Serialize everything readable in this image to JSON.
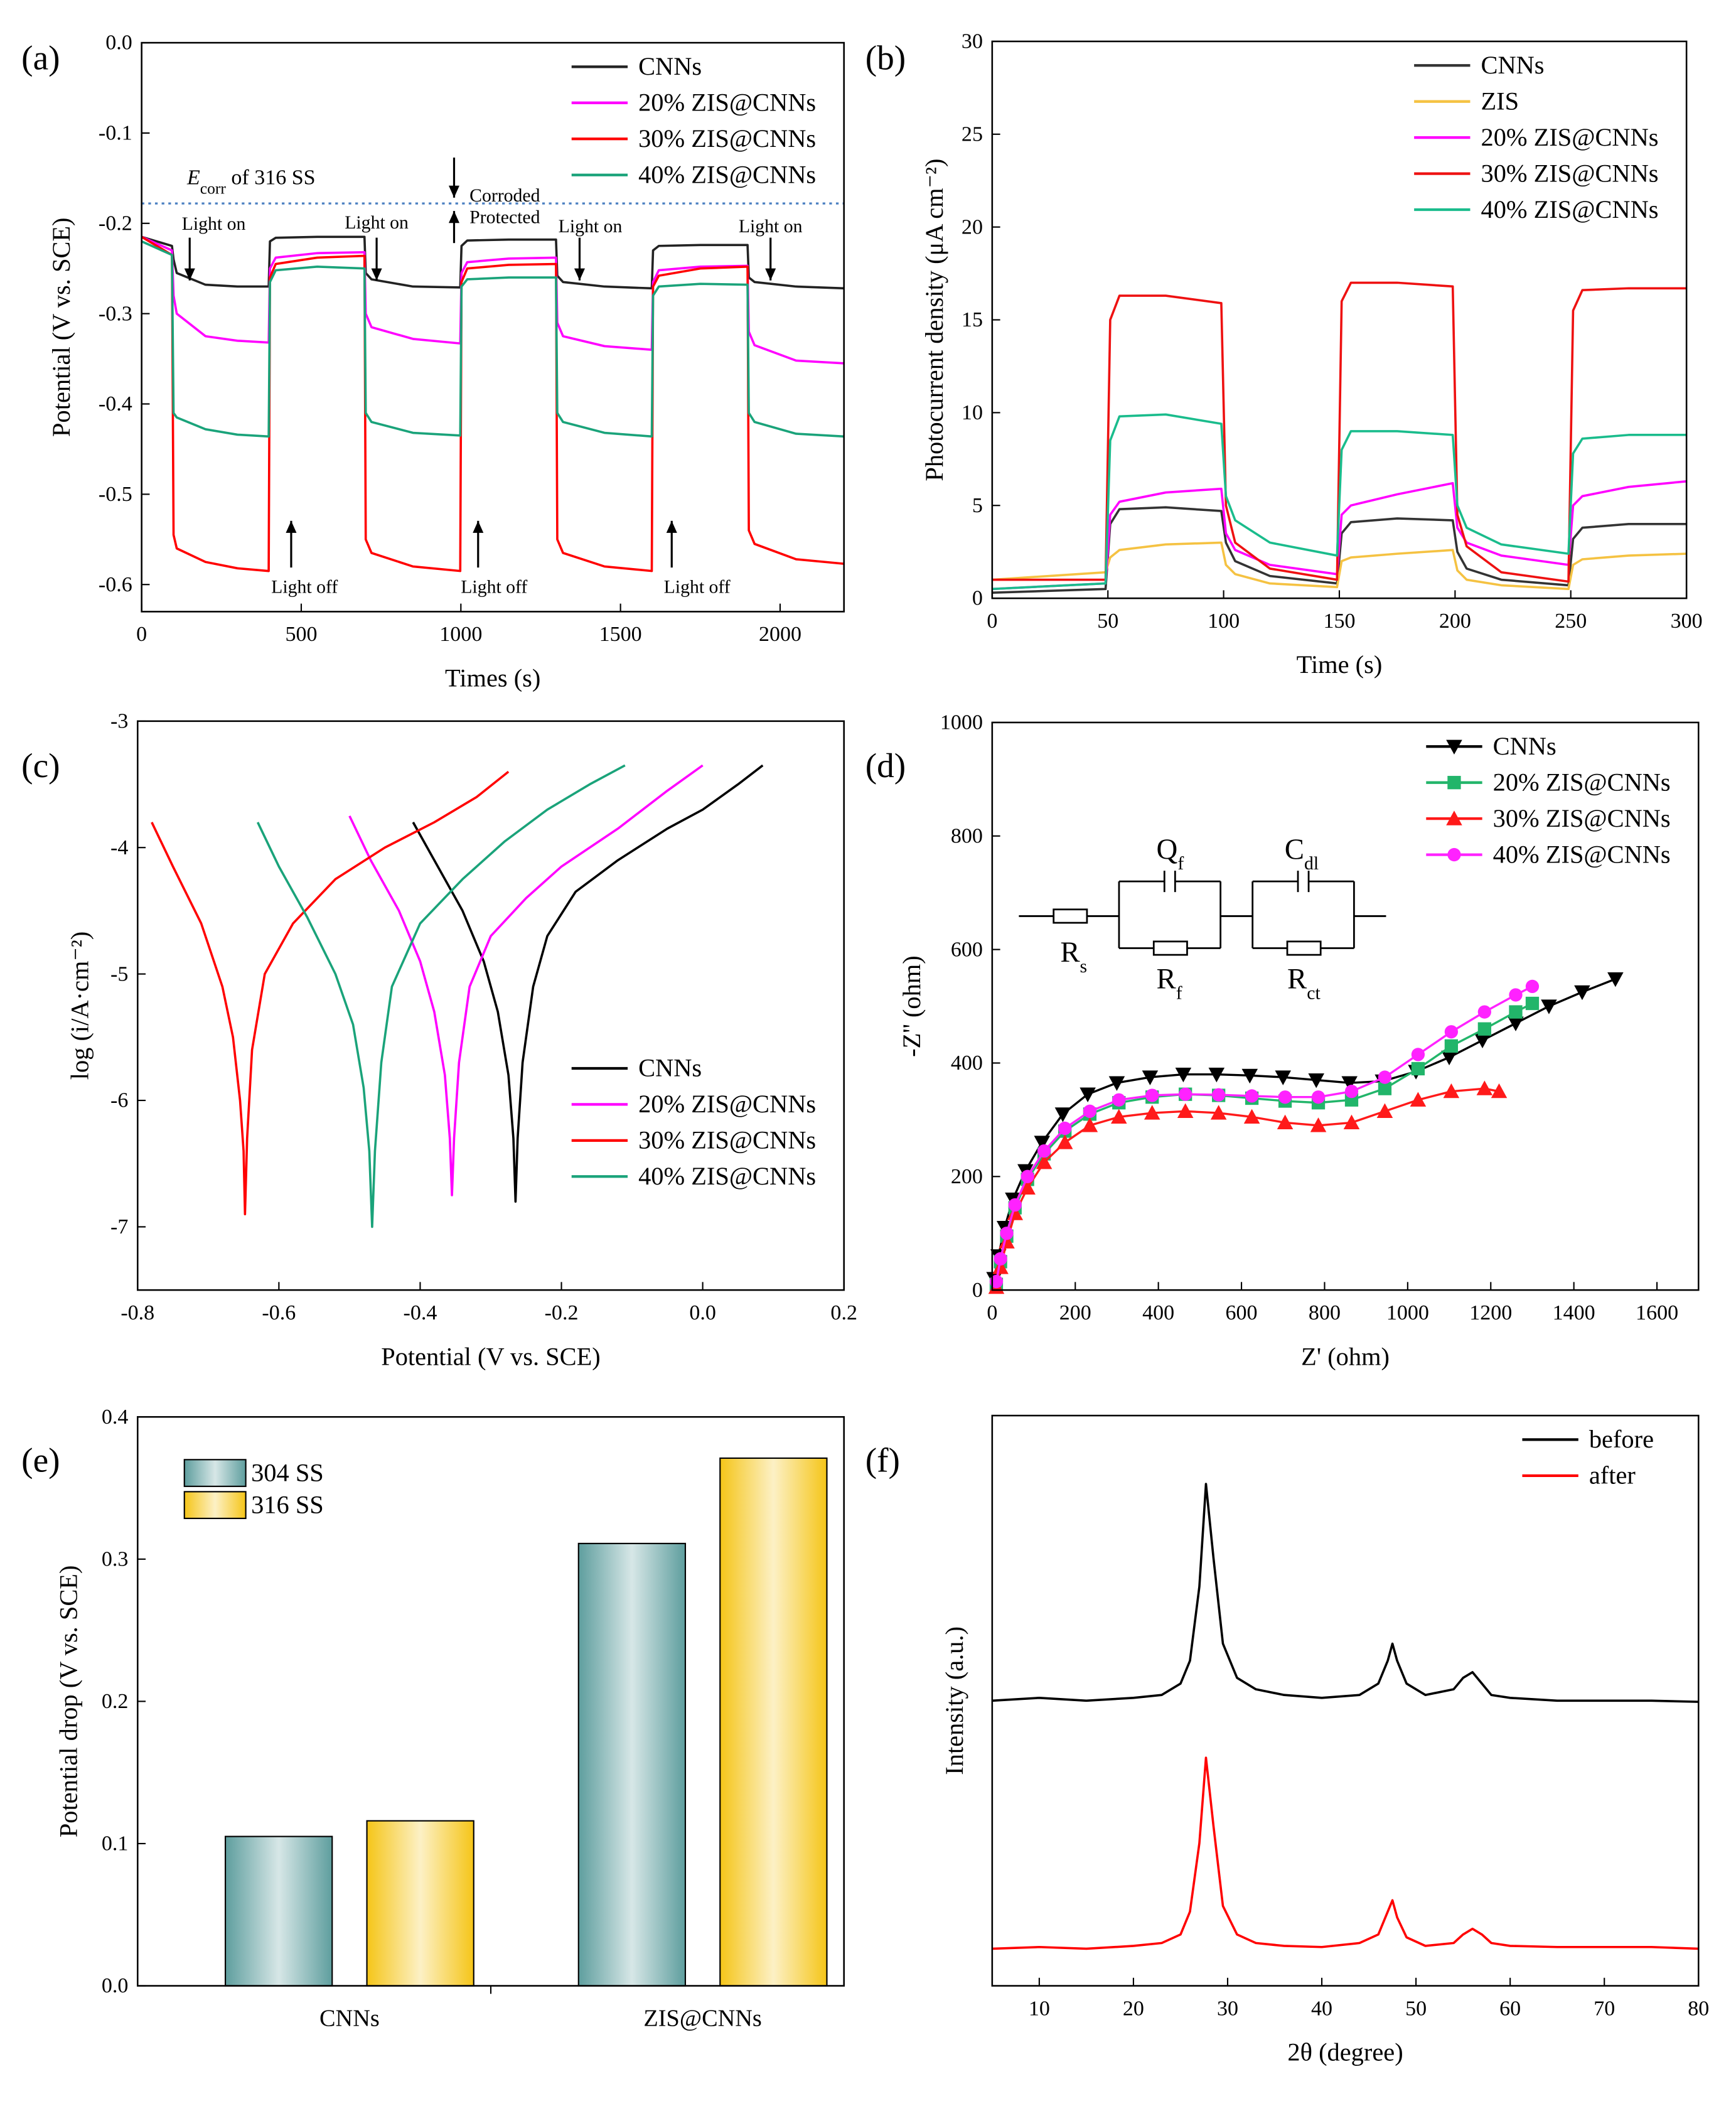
{
  "chart_data": [
    {
      "type": "line",
      "label": "(a)",
      "xlabel": "Times (s)",
      "ylabel": "Potential (V vs. SCE)",
      "xlim": [
        0,
        2200
      ],
      "xticks": [
        0,
        500,
        1000,
        1500,
        2000
      ],
      "ylim": [
        -0.63,
        0
      ],
      "yticks": [
        {
          "value": 0,
          "label": "0.0"
        },
        -0.1,
        -0.2,
        -0.3,
        -0.4,
        -0.5,
        -0.6
      ],
      "legend": "top-right",
      "ref_line": {
        "value": -0.178,
        "color": "#4a7fc1"
      },
      "ecorr_label": [
        "E",
        "corr",
        " of 316 SS"
      ],
      "annotations": [
        "Light on",
        "Light on",
        "Light on",
        "Light on",
        "Light off",
        "Light off",
        "Light off",
        "Corroded",
        "Protected"
      ],
      "x": [
        0,
        95,
        100,
        110,
        200,
        300,
        398,
        402,
        420,
        550,
        698,
        702,
        720,
        850,
        998,
        1002,
        1020,
        1150,
        1298,
        1302,
        1320,
        1450,
        1598,
        1602,
        1620,
        1750,
        1898,
        1902,
        1920,
        2050,
        2200
      ],
      "series": [
        {
          "name": "CNNs",
          "color": "#222222",
          "values": [
            -0.215,
            -0.225,
            -0.24,
            -0.255,
            -0.268,
            -0.27,
            -0.27,
            -0.22,
            -0.216,
            -0.215,
            -0.215,
            -0.255,
            -0.262,
            -0.27,
            -0.271,
            -0.225,
            -0.219,
            -0.218,
            -0.218,
            -0.258,
            -0.265,
            -0.27,
            -0.272,
            -0.23,
            -0.225,
            -0.224,
            -0.224,
            -0.26,
            -0.265,
            -0.27,
            -0.272
          ]
        },
        {
          "name": "20% ZIS@CNNs",
          "color": "#ff00ff",
          "values": [
            -0.215,
            -0.23,
            -0.28,
            -0.3,
            -0.325,
            -0.33,
            -0.332,
            -0.25,
            -0.238,
            -0.233,
            -0.232,
            -0.3,
            -0.315,
            -0.328,
            -0.333,
            -0.255,
            -0.243,
            -0.239,
            -0.238,
            -0.31,
            -0.325,
            -0.336,
            -0.34,
            -0.265,
            -0.252,
            -0.248,
            -0.247,
            -0.32,
            -0.335,
            -0.352,
            -0.355
          ]
        },
        {
          "name": "30% ZIS@CNNs",
          "color": "#ff0000",
          "values": [
            -0.215,
            -0.235,
            -0.545,
            -0.56,
            -0.575,
            -0.582,
            -0.585,
            -0.26,
            -0.245,
            -0.238,
            -0.236,
            -0.55,
            -0.565,
            -0.58,
            -0.585,
            -0.265,
            -0.25,
            -0.246,
            -0.245,
            -0.55,
            -0.565,
            -0.58,
            -0.585,
            -0.27,
            -0.258,
            -0.25,
            -0.248,
            -0.54,
            -0.555,
            -0.572,
            -0.577
          ]
        },
        {
          "name": "40% ZIS@CNNs",
          "color": "#1aa37a",
          "values": [
            -0.22,
            -0.235,
            -0.41,
            -0.415,
            -0.428,
            -0.434,
            -0.436,
            -0.265,
            -0.252,
            -0.248,
            -0.25,
            -0.41,
            -0.42,
            -0.432,
            -0.435,
            -0.27,
            -0.262,
            -0.26,
            -0.26,
            -0.41,
            -0.42,
            -0.432,
            -0.436,
            -0.28,
            -0.27,
            -0.267,
            -0.268,
            -0.41,
            -0.42,
            -0.433,
            -0.436
          ]
        }
      ]
    },
    {
      "type": "line",
      "label": "(b)",
      "xlabel": "Time (s)",
      "ylabel": "Photocurrent density (μA cm⁻²)",
      "xlim": [
        0,
        300
      ],
      "xticks": [
        0,
        50,
        100,
        150,
        200,
        250,
        300
      ],
      "ylim": [
        0,
        30
      ],
      "yticks": [
        0,
        5,
        10,
        15,
        20,
        25,
        30
      ],
      "legend": "top-right",
      "x": [
        0,
        49,
        51,
        55,
        75,
        99,
        101,
        105,
        120,
        149,
        151,
        155,
        175,
        199,
        201,
        205,
        220,
        249,
        251,
        255,
        275,
        300
      ],
      "series": [
        {
          "name": "CNNs",
          "color": "#333333",
          "values": [
            0.3,
            0.5,
            4.0,
            4.8,
            4.9,
            4.7,
            3.0,
            2.0,
            1.2,
            0.8,
            3.5,
            4.1,
            4.3,
            4.2,
            2.5,
            1.6,
            1.0,
            0.7,
            3.2,
            3.8,
            4.0,
            4.0
          ]
        },
        {
          "name": "ZIS",
          "color": "#f5c242",
          "values": [
            1.0,
            1.4,
            2.2,
            2.6,
            2.9,
            3.0,
            1.8,
            1.3,
            0.8,
            0.6,
            2.0,
            2.2,
            2.4,
            2.6,
            1.5,
            1.0,
            0.7,
            0.5,
            1.8,
            2.1,
            2.3,
            2.4
          ]
        },
        {
          "name": "20% ZIS@CNNs",
          "color": "#ff00ff",
          "values": [
            0.5,
            0.8,
            4.5,
            5.2,
            5.7,
            5.9,
            3.5,
            2.6,
            1.8,
            1.3,
            4.5,
            5.0,
            5.6,
            6.2,
            3.8,
            3.0,
            2.3,
            1.8,
            5.0,
            5.5,
            6.0,
            6.3
          ]
        },
        {
          "name": "30% ZIS@CNNs",
          "color": "#ee1111",
          "values": [
            1.0,
            1.0,
            15.0,
            16.3,
            16.3,
            15.9,
            5.0,
            3.0,
            1.6,
            1.0,
            16.0,
            17.0,
            17.0,
            16.8,
            4.5,
            2.8,
            1.4,
            0.9,
            15.5,
            16.6,
            16.7,
            16.7
          ]
        },
        {
          "name": "40% ZIS@CNNs",
          "color": "#1abc8c",
          "values": [
            0.5,
            0.8,
            8.5,
            9.8,
            9.9,
            9.4,
            5.5,
            4.2,
            3.0,
            2.3,
            8.0,
            9.0,
            9.0,
            8.8,
            5.0,
            3.8,
            2.9,
            2.4,
            7.8,
            8.6,
            8.8,
            8.8
          ]
        }
      ]
    },
    {
      "type": "line",
      "label": "(c)",
      "xlabel": "Potential (V vs. SCE)",
      "ylabel": "log (i/A·cm⁻²)",
      "xlim": [
        -0.8,
        0.2
      ],
      "xticks": [
        -0.8,
        -0.6,
        -0.4,
        -0.2,
        {
          "value": 0,
          "label": "0.0"
        },
        0.2
      ],
      "ylim": [
        -7.5,
        -3
      ],
      "yticks": [
        -7,
        -6,
        -5,
        -4,
        -3
      ],
      "legend": "bottom-right",
      "series": [
        {
          "name": "CNNs",
          "color": "#000000",
          "x": [
            -0.41,
            -0.38,
            -0.34,
            -0.31,
            -0.29,
            -0.275,
            -0.268,
            -0.265,
            -0.262,
            -0.255,
            -0.24,
            -0.22,
            -0.18,
            -0.12,
            -0.05,
            0.0,
            0.05,
            0.085
          ],
          "values": [
            -3.8,
            -4.1,
            -4.5,
            -4.9,
            -5.3,
            -5.8,
            -6.3,
            -6.8,
            -6.3,
            -5.7,
            -5.1,
            -4.7,
            -4.35,
            -4.1,
            -3.85,
            -3.7,
            -3.5,
            -3.35
          ]
        },
        {
          "name": "20% ZIS@CNNs",
          "color": "#ff00ff",
          "x": [
            -0.5,
            -0.47,
            -0.43,
            -0.4,
            -0.38,
            -0.365,
            -0.358,
            -0.355,
            -0.352,
            -0.345,
            -0.33,
            -0.3,
            -0.25,
            -0.2,
            -0.12,
            -0.05,
            0.0
          ],
          "values": [
            -3.75,
            -4.1,
            -4.5,
            -4.9,
            -5.3,
            -5.8,
            -6.3,
            -6.75,
            -6.3,
            -5.7,
            -5.1,
            -4.7,
            -4.4,
            -4.15,
            -3.85,
            -3.55,
            -3.35
          ]
        },
        {
          "name": "30% ZIS@CNNs",
          "color": "#ff0000",
          "x": [
            -0.78,
            -0.75,
            -0.71,
            -0.68,
            -0.665,
            -0.655,
            -0.65,
            -0.648,
            -0.645,
            -0.638,
            -0.62,
            -0.58,
            -0.52,
            -0.45,
            -0.38,
            -0.32,
            -0.275
          ],
          "values": [
            -3.8,
            -4.15,
            -4.6,
            -5.1,
            -5.5,
            -6.0,
            -6.4,
            -6.9,
            -6.3,
            -5.6,
            -5.0,
            -4.6,
            -4.25,
            -4.0,
            -3.8,
            -3.6,
            -3.4
          ]
        },
        {
          "name": "40% ZIS@CNNs",
          "color": "#1aa37a",
          "x": [
            -0.63,
            -0.6,
            -0.56,
            -0.52,
            -0.495,
            -0.48,
            -0.472,
            -0.468,
            -0.464,
            -0.455,
            -0.44,
            -0.4,
            -0.34,
            -0.28,
            -0.22,
            -0.16,
            -0.11
          ],
          "values": [
            -3.8,
            -4.15,
            -4.55,
            -5.0,
            -5.4,
            -5.9,
            -6.4,
            -7.0,
            -6.4,
            -5.7,
            -5.1,
            -4.6,
            -4.25,
            -3.95,
            -3.7,
            -3.5,
            -3.35
          ]
        }
      ]
    },
    {
      "type": "line",
      "label": "(d)",
      "xlabel": "Z' (ohm)",
      "ylabel": "-Z'' (ohm)",
      "xlim": [
        0,
        1700
      ],
      "xticks": [
        0,
        200,
        400,
        600,
        800,
        1000,
        1200,
        1400,
        1600
      ],
      "ylim": [
        0,
        1000
      ],
      "yticks": [
        0,
        200,
        400,
        600,
        800,
        1000
      ],
      "legend": "top-right",
      "circuit_labels": [
        [
          "R",
          "s"
        ],
        [
          "Q",
          "f"
        ],
        [
          "R",
          "f"
        ],
        [
          "C",
          "dl"
        ],
        [
          "R",
          "ct"
        ]
      ],
      "series": [
        {
          "name": "CNNs",
          "color": "#000000",
          "marker": "triangle-down",
          "x": [
            5,
            15,
            30,
            50,
            80,
            120,
            170,
            230,
            300,
            380,
            460,
            540,
            620,
            700,
            780,
            860,
            940,
            1020,
            1100,
            1180,
            1260,
            1340,
            1420,
            1500
          ],
          "values": [
            20,
            60,
            110,
            160,
            210,
            260,
            310,
            345,
            365,
            375,
            380,
            380,
            378,
            375,
            370,
            365,
            368,
            385,
            410,
            440,
            470,
            500,
            525,
            548
          ]
        },
        {
          "name": "20% ZIS@CNNs",
          "color": "#22b56a",
          "marker": "square",
          "x": [
            10,
            20,
            35,
            55,
            85,
            125,
            175,
            235,
            305,
            385,
            465,
            545,
            625,
            705,
            785,
            865,
            945,
            1025,
            1105,
            1185,
            1260,
            1300
          ],
          "values": [
            10,
            50,
            95,
            145,
            195,
            240,
            280,
            310,
            330,
            340,
            345,
            343,
            338,
            333,
            330,
            335,
            355,
            390,
            430,
            460,
            490,
            505
          ]
        },
        {
          "name": "30% ZIS@CNNs",
          "color": "#ff1a1a",
          "marker": "triangle-up",
          "x": [
            10,
            20,
            35,
            55,
            85,
            125,
            175,
            235,
            305,
            385,
            465,
            545,
            625,
            705,
            785,
            865,
            945,
            1025,
            1105,
            1185,
            1220
          ],
          "values": [
            5,
            40,
            85,
            135,
            180,
            225,
            260,
            290,
            305,
            312,
            315,
            312,
            305,
            295,
            290,
            295,
            315,
            335,
            350,
            355,
            350
          ]
        },
        {
          "name": "40% ZIS@CNNs",
          "color": "#ff22ff",
          "marker": "circle",
          "x": [
            10,
            20,
            35,
            55,
            85,
            125,
            175,
            235,
            305,
            385,
            465,
            545,
            625,
            705,
            785,
            865,
            945,
            1025,
            1105,
            1185,
            1260,
            1300
          ],
          "values": [
            15,
            55,
            100,
            150,
            200,
            245,
            285,
            315,
            335,
            343,
            345,
            344,
            342,
            340,
            340,
            350,
            375,
            415,
            455,
            490,
            520,
            535
          ]
        }
      ]
    },
    {
      "type": "bar",
      "label": "(e)",
      "ylabel": "Potential drop (V vs. SCE)",
      "categories": [
        "CNNs",
        "ZIS@CNNs"
      ],
      "ylim": [
        0,
        0.4
      ],
      "yticks": [
        {
          "value": 0,
          "label": "0.0"
        },
        0.1,
        0.2,
        0.3,
        0.4
      ],
      "legend": "top-left",
      "series": [
        {
          "name": "304 SS",
          "color": "#5e9e9e",
          "values": [
            0.105,
            0.311
          ]
        },
        {
          "name": "316 SS",
          "color": "#f5c518",
          "values": [
            0.116,
            0.371
          ]
        }
      ]
    },
    {
      "type": "line",
      "label": "(f)",
      "xlabel": "2θ (degree)",
      "ylabel": "Intensity (a.u.)",
      "xlim": [
        5,
        80
      ],
      "xticks": [
        10,
        20,
        30,
        40,
        50,
        60,
        70,
        80
      ],
      "ylim": [
        0,
        100
      ],
      "yticks": [],
      "legend": "top-right",
      "x": [
        5,
        10,
        15,
        20,
        23,
        25,
        26,
        27,
        27.7,
        28.5,
        29.5,
        31,
        33,
        36,
        40,
        44,
        46,
        47,
        47.5,
        48,
        49,
        51,
        54,
        55,
        56,
        57,
        58,
        60,
        65,
        70,
        75,
        80
      ],
      "series": [
        {
          "name": "before",
          "color": "#000000",
          "values": [
            50,
            50.5,
            50,
            50.5,
            51,
            53,
            57,
            70,
            88,
            75,
            60,
            54,
            52,
            51,
            50.5,
            51,
            53,
            57,
            60,
            57,
            53,
            51,
            52,
            54,
            55,
            53,
            51,
            50.5,
            50,
            50,
            50,
            49.8
          ]
        },
        {
          "name": "after",
          "color": "#ff0000",
          "values": [
            6.5,
            6.8,
            6.5,
            7,
            7.5,
            9,
            13,
            25,
            40,
            28,
            14,
            9,
            7.5,
            7,
            6.8,
            7.5,
            9,
            13,
            15,
            12,
            8.5,
            7,
            7.5,
            9,
            10,
            9,
            7.5,
            7,
            6.8,
            6.8,
            6.8,
            6.5
          ]
        }
      ]
    }
  ]
}
